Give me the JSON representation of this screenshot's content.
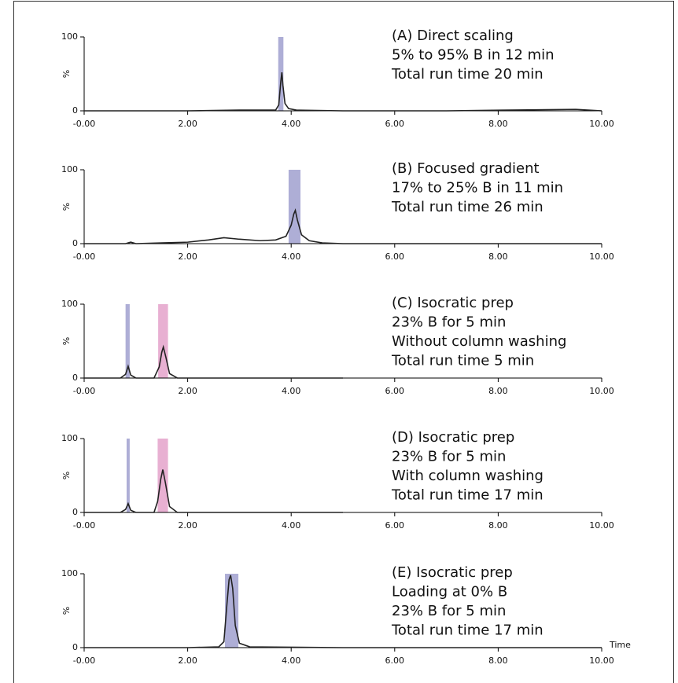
{
  "chart_data": [
    {
      "type": "line",
      "annotation": [
        "(A) Direct scaling",
        "5% to 95% B in 12 min",
        "Total run time 20 min"
      ],
      "ylabel": "%",
      "xlim": [
        0,
        10
      ],
      "ylim": [
        0,
        100
      ],
      "xticks": [
        {
          "value": 0,
          "label": "-0.00"
        },
        {
          "value": 2,
          "label": "2.00"
        },
        {
          "value": 4,
          "label": "4.00"
        },
        {
          "value": 6,
          "label": "6.00"
        },
        {
          "value": 8,
          "label": "8.00"
        },
        {
          "value": 10,
          "label": "10.00"
        }
      ],
      "yticks": [
        0,
        100
      ],
      "color": "#222222",
      "highlights": [
        {
          "start": 3.75,
          "end": 3.85,
          "color": "#aeaed6"
        }
      ],
      "x": [
        0,
        1,
        2,
        3,
        3.7,
        3.76,
        3.8,
        3.82,
        3.84,
        3.88,
        3.95,
        4.1,
        5,
        7,
        9.5,
        10
      ],
      "values": [
        0,
        0,
        0,
        1,
        1,
        8,
        40,
        52,
        35,
        10,
        3,
        1,
        0,
        0,
        2,
        0
      ]
    },
    {
      "type": "line",
      "annotation": [
        "(B) Focused gradient",
        "17% to 25% B in 11 min",
        "Total run time 26 min"
      ],
      "ylabel": "%",
      "xlim": [
        0,
        10
      ],
      "ylim": [
        0,
        100
      ],
      "xticks": [
        {
          "value": 0,
          "label": "-0.00"
        },
        {
          "value": 2,
          "label": "2.00"
        },
        {
          "value": 4,
          "label": "4.00"
        },
        {
          "value": 6,
          "label": "6.00"
        },
        {
          "value": 8,
          "label": "8.00"
        },
        {
          "value": 10,
          "label": "10.00"
        }
      ],
      "yticks": [
        0,
        100
      ],
      "color": "#222222",
      "highlights": [
        {
          "start": 3.95,
          "end": 4.18,
          "color": "#aeaed6"
        }
      ],
      "x": [
        0,
        0.8,
        0.9,
        1.0,
        1.5,
        2.0,
        2.4,
        2.7,
        3.0,
        3.4,
        3.7,
        3.9,
        4.0,
        4.05,
        4.08,
        4.12,
        4.2,
        4.35,
        4.6,
        5,
        7,
        10
      ],
      "values": [
        0,
        0,
        2,
        0,
        1,
        2,
        5,
        8,
        6,
        4,
        5,
        10,
        25,
        40,
        45,
        32,
        12,
        4,
        1,
        0,
        0,
        0
      ]
    },
    {
      "type": "line",
      "annotation": [
        "(C) Isocratic prep",
        "23% B for 5 min",
        "Without column washing",
        "Total run time 5 min"
      ],
      "ylabel": "%",
      "xlim": [
        0,
        10
      ],
      "ylim": [
        0,
        100
      ],
      "xticks": [
        {
          "value": 0,
          "label": "-0.00"
        },
        {
          "value": 2,
          "label": "2.00"
        },
        {
          "value": 4,
          "label": "4.00"
        },
        {
          "value": 6,
          "label": "6.00"
        },
        {
          "value": 8,
          "label": "8.00"
        },
        {
          "value": 10,
          "label": "10.00"
        }
      ],
      "yticks": [
        0,
        100
      ],
      "color": "#222222",
      "highlights": [
        {
          "start": 0.8,
          "end": 0.88,
          "color": "#aeaed6"
        },
        {
          "start": 1.43,
          "end": 1.62,
          "color": "#e8b0d2"
        }
      ],
      "x": [
        0,
        0.7,
        0.8,
        0.85,
        0.9,
        1.0,
        1.35,
        1.45,
        1.5,
        1.53,
        1.58,
        1.65,
        1.8,
        3,
        5
      ],
      "values": [
        0,
        0,
        5,
        16,
        4,
        0,
        0,
        15,
        35,
        42,
        28,
        6,
        0,
        0,
        0
      ]
    },
    {
      "type": "line",
      "annotation": [
        "(D) Isocratic prep",
        "23% B for 5 min",
        "With column washing",
        "Total run time 17 min"
      ],
      "ylabel": "%",
      "xlim": [
        0,
        10
      ],
      "ylim": [
        0,
        100
      ],
      "xticks": [
        {
          "value": 0,
          "label": "-0.00"
        },
        {
          "value": 2,
          "label": "2.00"
        },
        {
          "value": 4,
          "label": "4.00"
        },
        {
          "value": 6,
          "label": "6.00"
        },
        {
          "value": 8,
          "label": "8.00"
        },
        {
          "value": 10,
          "label": "10.00"
        }
      ],
      "yticks": [
        0,
        100
      ],
      "color": "#222222",
      "highlights": [
        {
          "start": 0.82,
          "end": 0.88,
          "color": "#aeaed6"
        },
        {
          "start": 1.42,
          "end": 1.62,
          "color": "#e8b0d2"
        }
      ],
      "x": [
        0,
        0.7,
        0.8,
        0.85,
        0.9,
        1.0,
        1.35,
        1.42,
        1.48,
        1.52,
        1.57,
        1.65,
        1.8,
        3,
        5
      ],
      "values": [
        0,
        0,
        4,
        12,
        3,
        0,
        0,
        15,
        45,
        58,
        40,
        8,
        0,
        0,
        0
      ]
    },
    {
      "type": "line",
      "annotation": [
        "(E) Isocratic prep",
        "Loading at 0% B",
        "23% B for 5 min",
        "Total run time 17 min"
      ],
      "ylabel": "%",
      "xlabel": "Time",
      "xlim": [
        0,
        10
      ],
      "ylim": [
        0,
        100
      ],
      "xticks": [
        {
          "value": 0,
          "label": "-0.00"
        },
        {
          "value": 2,
          "label": "2.00"
        },
        {
          "value": 4,
          "label": "4.00"
        },
        {
          "value": 6,
          "label": "6.00"
        },
        {
          "value": 8,
          "label": "8.00"
        },
        {
          "value": 10,
          "label": "10.00"
        }
      ],
      "yticks": [
        0,
        100
      ],
      "color": "#222222",
      "highlights": [
        {
          "start": 2.72,
          "end": 2.98,
          "color": "#aeaed6"
        }
      ],
      "x": [
        0,
        2,
        2.6,
        2.7,
        2.76,
        2.8,
        2.83,
        2.87,
        2.92,
        3.0,
        3.2,
        5,
        10
      ],
      "values": [
        0,
        0,
        1,
        8,
        60,
        92,
        98,
        80,
        30,
        6,
        1,
        0,
        0
      ]
    }
  ]
}
